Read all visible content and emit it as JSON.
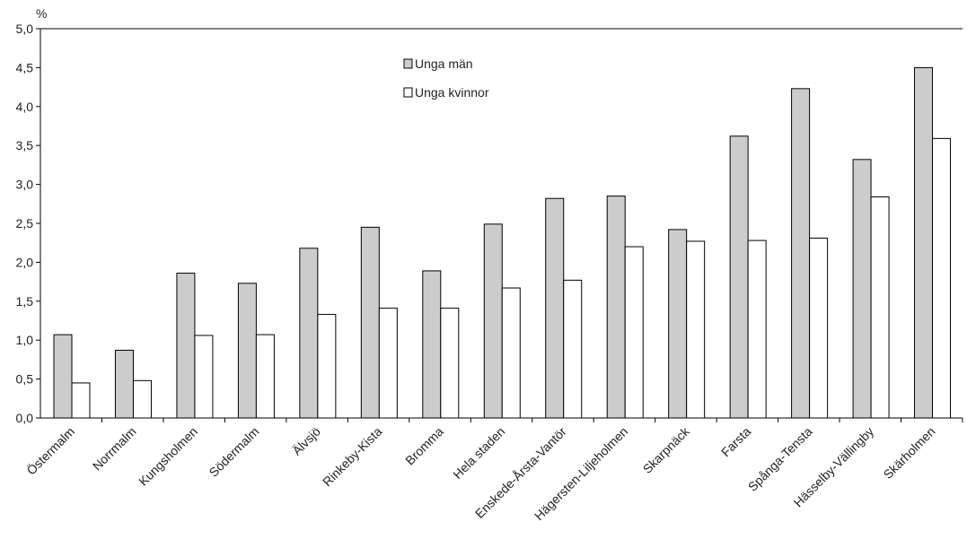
{
  "chart_data": {
    "type": "bar",
    "ylabel": "%",
    "ylim": [
      0,
      5
    ],
    "ytick_step": 0.5,
    "ytick_labels": [
      "0,0",
      "0,5",
      "1,0",
      "1,5",
      "2,0",
      "2,5",
      "3,0",
      "3,5",
      "4,0",
      "4,5",
      "5,0"
    ],
    "categories": [
      "Östermalm",
      "Norrmalm",
      "Kungsholmen",
      "Södermalm",
      "Älvsjö",
      "Rinkeby-Kista",
      "Bromma",
      "Hela staden",
      "Enskede-Årsta-Vantör",
      "Hägersten-Liljeholmen",
      "Skarpnäck",
      "Farsta",
      "Spånga-Tensta",
      "Hässelby-Vällingby",
      "Skärholmen"
    ],
    "series": [
      {
        "name": "Unga män",
        "color": "#cccccc",
        "values": [
          1.07,
          0.87,
          1.86,
          1.73,
          2.18,
          2.45,
          1.89,
          2.49,
          2.82,
          2.85,
          2.42,
          3.62,
          4.23,
          3.32,
          4.5
        ]
      },
      {
        "name": "Unga kvinnor",
        "color": "#ffffff",
        "values": [
          0.45,
          0.48,
          1.06,
          1.07,
          1.33,
          1.41,
          1.41,
          1.67,
          1.77,
          2.2,
          2.27,
          2.28,
          2.31,
          2.84,
          3.59
        ]
      }
    ],
    "grid": false,
    "legend_position": "top-center"
  }
}
